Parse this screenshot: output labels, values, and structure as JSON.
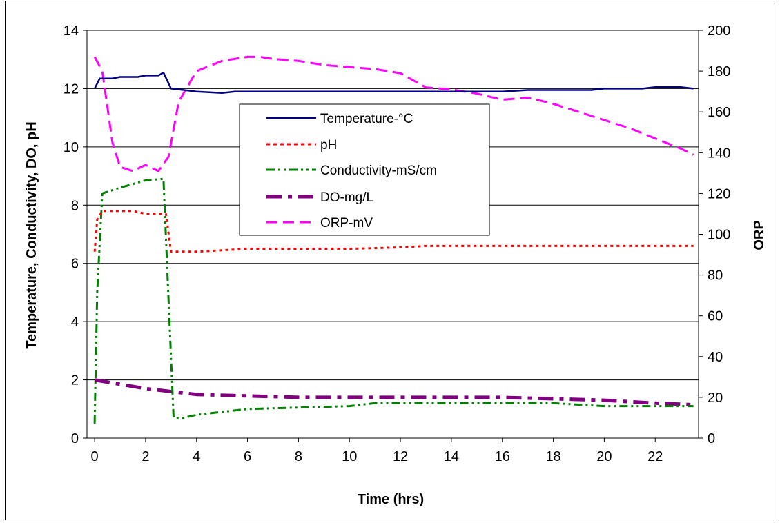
{
  "chart_data": {
    "type": "line",
    "title": "",
    "xlabel": "Time (hrs)",
    "ylabel": "Temperature, Conductivity, DO, pH",
    "y2label": "ORP",
    "xlim": [
      -0.3,
      23.7
    ],
    "ylim": [
      0,
      14
    ],
    "y2lim": [
      0,
      200
    ],
    "x_ticks": [
      0,
      2,
      4,
      6,
      8,
      10,
      12,
      14,
      16,
      18,
      20,
      22
    ],
    "y_ticks": [
      0,
      2,
      4,
      6,
      8,
      10,
      12,
      14
    ],
    "y2_ticks": [
      0,
      20,
      40,
      60,
      80,
      100,
      120,
      140,
      160,
      180,
      200
    ],
    "grid": "horizontal",
    "legend_position": "center",
    "series": [
      {
        "name": "Temperature-°C",
        "axis": "left",
        "color": "#000080",
        "style": "solid",
        "x": [
          0,
          0.2,
          0.7,
          1,
          1.7,
          2,
          2.5,
          2.7,
          3,
          3.5,
          4,
          5,
          5.5,
          6,
          8,
          10,
          12,
          14,
          16,
          17,
          18,
          19.5,
          20,
          21.5,
          22,
          23,
          23.5
        ],
        "y": [
          12.0,
          12.35,
          12.35,
          12.4,
          12.4,
          12.45,
          12.45,
          12.55,
          12.0,
          11.95,
          11.9,
          11.85,
          11.9,
          11.9,
          11.9,
          11.9,
          11.9,
          11.9,
          11.9,
          11.95,
          11.95,
          11.95,
          12.0,
          12.0,
          12.05,
          12.05,
          12.0
        ]
      },
      {
        "name": "pH",
        "axis": "left",
        "color": "#ff0000",
        "style": "dotted",
        "x": [
          0,
          0.1,
          0.3,
          1,
          1.5,
          2,
          2.5,
          2.8,
          3,
          4,
          5,
          6,
          8,
          10,
          12,
          13,
          16,
          20,
          23.5
        ],
        "y": [
          6.4,
          7.5,
          7.8,
          7.8,
          7.8,
          7.7,
          7.7,
          7.7,
          6.4,
          6.4,
          6.45,
          6.5,
          6.5,
          6.5,
          6.55,
          6.6,
          6.6,
          6.6,
          6.6
        ]
      },
      {
        "name": "Conductivity-mS/cm",
        "axis": "left",
        "color": "#008000",
        "style": "dash-dot-dot",
        "x": [
          0,
          0.1,
          0.3,
          1,
          2,
          2.7,
          2.9,
          3.1,
          3.5,
          4,
          5,
          6,
          8,
          10,
          11,
          12,
          14,
          16,
          18,
          19,
          20,
          21,
          22,
          23.5
        ],
        "y": [
          0.5,
          5.0,
          8.4,
          8.6,
          8.85,
          8.9,
          4.8,
          0.7,
          0.7,
          0.8,
          0.9,
          1.0,
          1.05,
          1.1,
          1.2,
          1.2,
          1.2,
          1.2,
          1.2,
          1.15,
          1.1,
          1.1,
          1.1,
          1.1
        ]
      },
      {
        "name": "DO-mg/L",
        "axis": "left",
        "color": "#800080",
        "style": "long-dash-dot",
        "x": [
          0,
          2,
          4,
          6,
          8,
          10,
          14,
          16,
          18,
          20,
          22,
          23.5
        ],
        "y": [
          2.0,
          1.7,
          1.5,
          1.45,
          1.4,
          1.4,
          1.4,
          1.4,
          1.35,
          1.3,
          1.2,
          1.15
        ]
      },
      {
        "name": "ORP-mV",
        "axis": "right",
        "color": "#ff00ff",
        "style": "dashed",
        "x": [
          0,
          0.3,
          0.7,
          1,
          1.5,
          2,
          2.5,
          2.9,
          3.3,
          4,
          5,
          6,
          6.5,
          7,
          8,
          9,
          10,
          11,
          12,
          13,
          14,
          15,
          16,
          17,
          18,
          19,
          20,
          21,
          22,
          23,
          23.5
        ],
        "y": [
          187,
          180,
          145,
          133,
          131,
          134,
          131,
          138,
          165,
          180,
          185,
          187,
          187,
          186,
          185,
          183,
          182,
          181,
          179,
          172,
          171,
          169,
          166,
          167,
          164,
          160,
          156,
          152,
          147,
          142,
          139
        ]
      }
    ]
  }
}
